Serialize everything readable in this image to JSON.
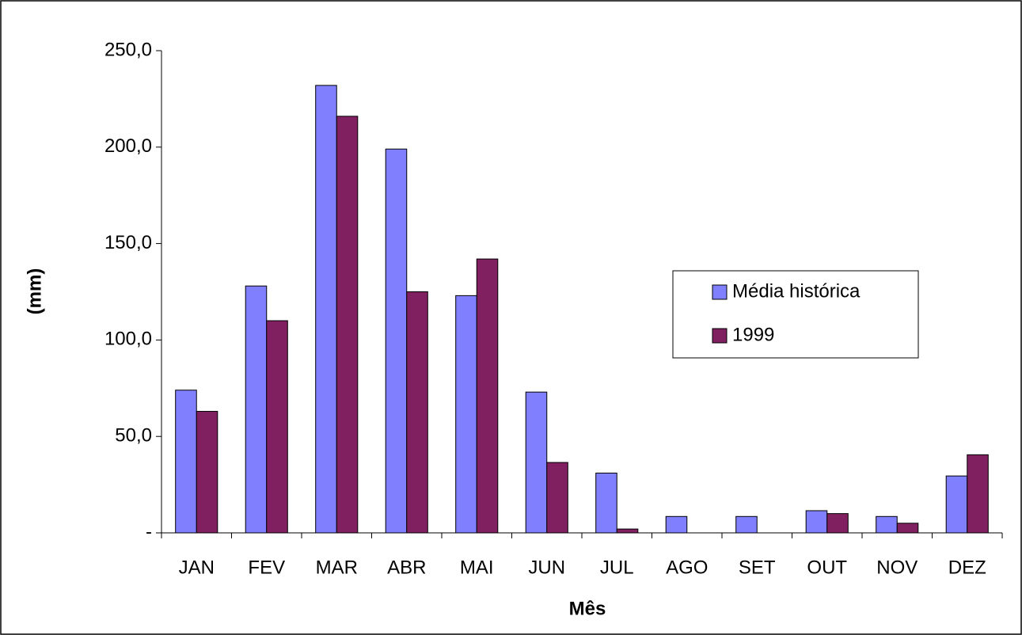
{
  "chart_data": {
    "type": "bar",
    "x_label": "Mês",
    "y_label": "(mm)",
    "categories": [
      "JAN",
      "FEV",
      "MAR",
      "ABR",
      "MAI",
      "JUN",
      "JUL",
      "AGO",
      "SET",
      "OUT",
      "NOV",
      "DEZ"
    ],
    "series": [
      {
        "name": "Média histórica",
        "color": "#8080ff",
        "values": [
          74,
          128,
          232,
          199,
          123,
          73,
          31,
          8.5,
          8.5,
          11.5,
          8.5,
          29.5
        ]
      },
      {
        "name": "1999",
        "color": "#802060",
        "values": [
          63,
          110,
          216,
          125,
          142,
          36.5,
          2,
          0,
          0,
          10,
          5,
          40.5
        ]
      }
    ],
    "ylim": [
      0,
      250
    ],
    "yticks": [
      {
        "value": 0,
        "label": "-"
      },
      {
        "value": 50,
        "label": "50,0"
      },
      {
        "value": 100,
        "label": "100,0"
      },
      {
        "value": 150,
        "label": "150,0"
      },
      {
        "value": 200,
        "label": "200,0"
      },
      {
        "value": 250,
        "label": "250,0"
      }
    ],
    "grid": false
  }
}
